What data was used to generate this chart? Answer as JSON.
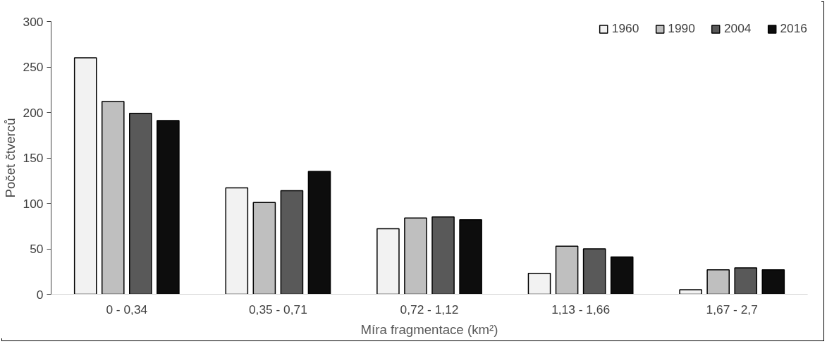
{
  "chart_data": {
    "type": "bar",
    "xlabel": "Míra fragmentace (km²)",
    "ylabel": "Počet čtverců",
    "categories": [
      "0 - 0,34",
      "0,35 - 0,71",
      "0,72 - 1,12",
      "1,13 - 1,66",
      "1,67 - 2,7"
    ],
    "series": [
      {
        "name": "1960",
        "color": "#f2f2f2",
        "values": [
          260,
          117,
          72,
          23,
          5
        ]
      },
      {
        "name": "1990",
        "color": "#bfbfbf",
        "values": [
          212,
          101,
          84,
          53,
          27
        ]
      },
      {
        "name": "2004",
        "color": "#595959",
        "values": [
          199,
          114,
          85,
          50,
          29
        ]
      },
      {
        "name": "2016",
        "color": "#0d0d0d",
        "values": [
          191,
          135,
          82,
          41,
          27
        ]
      }
    ],
    "ylim": [
      0,
      300
    ],
    "yticks": [
      0,
      50,
      100,
      150,
      200,
      250,
      300
    ],
    "grid": false,
    "legend": "top right"
  }
}
